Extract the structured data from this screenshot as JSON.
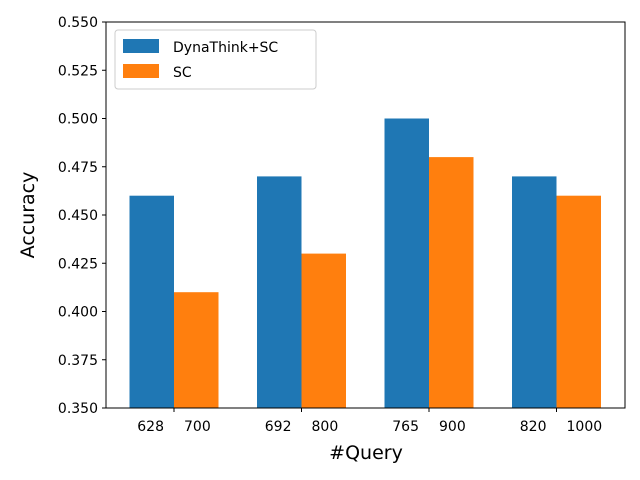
{
  "chart_data": {
    "type": "bar",
    "xlabel": "#Query",
    "ylabel": "Accuracy",
    "ylim": [
      0.35,
      0.55
    ],
    "yticks": [
      "0.350",
      "0.375",
      "0.400",
      "0.425",
      "0.450",
      "0.475",
      "0.500",
      "0.525",
      "0.550"
    ],
    "grid": false,
    "legend_position": "top-left",
    "series": [
      {
        "name": "DynaThink+SC",
        "color": "#1f77b4",
        "values": [
          0.46,
          0.47,
          0.5,
          0.47
        ],
        "x_labels": [
          "628",
          "692",
          "765",
          "820"
        ]
      },
      {
        "name": "SC",
        "color": "#ff7f0e",
        "values": [
          0.41,
          0.43,
          0.48,
          0.46
        ],
        "x_labels": [
          "700",
          "800",
          "900",
          "1000"
        ]
      }
    ]
  }
}
